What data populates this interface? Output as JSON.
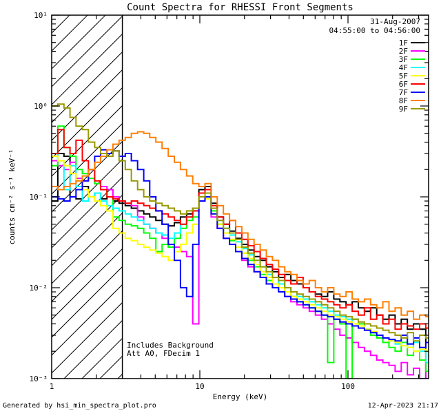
{
  "annotations": {
    "date": "31-Aug-2007",
    "time_range": "04:55:00 to 04:56:00",
    "note_line1": "Includes Background",
    "note_line2": "Att A0, FDecim 1"
  },
  "footer": {
    "left": "Generated by hsi_min_spectra_plot.pro",
    "right": "12-Apr-2023 21:17"
  },
  "chart_data": {
    "type": "line",
    "subtype": "log-log step spectra",
    "title": "Count Spectra for RHESSI Front Segments",
    "xlabel": "Energy (keV)",
    "ylabel": "counts cm⁻² s⁻¹ keV⁻¹",
    "x_scale": "log",
    "y_scale": "log",
    "xlim": [
      1,
      350
    ],
    "ylim": [
      0.001,
      10
    ],
    "x_tick_values": [
      1,
      10,
      100
    ],
    "x_tick_labels": [
      "1",
      "10",
      "100"
    ],
    "y_tick_values": [
      10,
      1,
      0.1,
      0.01,
      0.001
    ],
    "y_tick_labels": [
      "10¹",
      "10⁰",
      "10⁻¹",
      "10⁻²",
      "10⁻³"
    ],
    "grid": false,
    "legend_position": "top-right",
    "hatched_region_kev": [
      1,
      3
    ],
    "energies_kev": [
      1.0,
      1.1,
      1.21,
      1.33,
      1.46,
      1.61,
      1.77,
      1.95,
      2.14,
      2.36,
      2.59,
      2.85,
      3.14,
      3.45,
      3.8,
      4.18,
      4.59,
      5.05,
      5.56,
      6.12,
      6.73,
      7.4,
      8.14,
      8.95,
      9.85,
      10.83,
      11.92,
      13.11,
      14.42,
      15.86,
      17.45,
      19.19,
      21.11,
      23.22,
      25.54,
      28.1,
      30.91,
      34.0,
      37.4,
      41.14,
      45.25,
      49.78,
      54.76,
      60.23,
      66.25,
      72.88,
      80.17,
      88.18,
      97.0,
      106.7,
      117.4,
      129.1,
      142.0,
      156.2,
      171.8,
      189.0,
      207.9,
      228.7,
      251.6,
      276.8,
      304.4,
      334.9
    ],
    "series": [
      {
        "name": "1F",
        "color": "#000000",
        "values": [
          0.09,
          0.3,
          0.28,
          0.1,
          0.095,
          0.13,
          0.1,
          0.11,
          0.095,
          0.1,
          0.09,
          0.085,
          0.08,
          0.075,
          0.07,
          0.065,
          0.06,
          0.055,
          0.05,
          0.048,
          0.052,
          0.06,
          0.065,
          0.075,
          0.12,
          0.13,
          0.085,
          0.06,
          0.05,
          0.042,
          0.035,
          0.03,
          0.026,
          0.022,
          0.02,
          0.017,
          0.015,
          0.013,
          0.014,
          0.012,
          0.011,
          0.01,
          0.009,
          0.0085,
          0.008,
          0.009,
          0.0075,
          0.007,
          0.0065,
          0.007,
          0.006,
          0.0055,
          0.006,
          0.005,
          0.0045,
          0.005,
          0.004,
          0.0045,
          0.0035,
          0.004,
          0.0035,
          0.001
        ]
      },
      {
        "name": "2F",
        "color": "#FF00FF",
        "values": [
          0.25,
          0.22,
          0.2,
          0.24,
          0.16,
          0.15,
          0.16,
          0.14,
          0.13,
          0.12,
          0.1,
          0.09,
          0.085,
          0.08,
          0.06,
          0.05,
          0.045,
          0.04,
          0.035,
          0.03,
          0.028,
          0.025,
          0.022,
          0.004,
          0.09,
          0.1,
          0.06,
          0.045,
          0.035,
          0.03,
          0.025,
          0.02,
          0.017,
          0.015,
          0.013,
          0.011,
          0.01,
          0.009,
          0.008,
          0.007,
          0.0065,
          0.006,
          0.0055,
          0.005,
          0.0045,
          0.004,
          0.0035,
          0.003,
          0.0028,
          0.0025,
          0.0022,
          0.002,
          0.0018,
          0.0016,
          0.0015,
          0.0014,
          0.0012,
          0.0015,
          0.0011,
          0.0013,
          0.001,
          0.0012
        ]
      },
      {
        "name": "3F",
        "color": "#00FF00",
        "values": [
          0.22,
          0.6,
          0.35,
          0.28,
          0.2,
          0.18,
          0.16,
          0.14,
          0.12,
          0.1,
          0.06,
          0.055,
          0.05,
          0.048,
          0.045,
          0.04,
          0.035,
          0.025,
          0.03,
          0.028,
          0.035,
          0.045,
          0.055,
          0.06,
          0.09,
          0.1,
          0.07,
          0.05,
          0.04,
          0.033,
          0.028,
          0.024,
          0.02,
          0.017,
          0.014,
          0.012,
          0.01,
          0.012,
          0.009,
          0.008,
          0.007,
          0.0065,
          0.006,
          0.0055,
          0.005,
          0.0015,
          0.0045,
          0.004,
          0.001,
          0.0045,
          0.004,
          0.0035,
          0.003,
          0.0028,
          0.0025,
          0.0022,
          0.002,
          0.0025,
          0.0018,
          0.002,
          0.0016,
          0.0012
        ]
      },
      {
        "name": "4F",
        "color": "#00FFFF",
        "values": [
          0.3,
          0.25,
          0.12,
          0.22,
          0.13,
          0.09,
          0.1,
          0.11,
          0.09,
          0.08,
          0.075,
          0.07,
          0.065,
          0.06,
          0.055,
          0.05,
          0.045,
          0.04,
          0.038,
          0.035,
          0.04,
          0.05,
          0.06,
          0.07,
          0.1,
          0.11,
          0.075,
          0.055,
          0.045,
          0.038,
          0.032,
          0.027,
          0.023,
          0.02,
          0.017,
          0.014,
          0.013,
          0.011,
          0.01,
          0.009,
          0.008,
          0.0075,
          0.007,
          0.0065,
          0.006,
          0.0055,
          0.005,
          0.0048,
          0.0045,
          0.004,
          0.0038,
          0.0035,
          0.0032,
          0.003,
          0.0028,
          0.0026,
          0.0024,
          0.0028,
          0.0022,
          0.0025,
          0.002,
          0.0015
        ]
      },
      {
        "name": "5F",
        "color": "#FFFF00",
        "values": [
          0.28,
          0.25,
          0.22,
          0.18,
          0.15,
          0.12,
          0.1,
          0.09,
          0.08,
          0.07,
          0.045,
          0.04,
          0.035,
          0.033,
          0.03,
          0.028,
          0.026,
          0.024,
          0.022,
          0.02,
          0.025,
          0.03,
          0.04,
          0.05,
          0.09,
          0.095,
          0.065,
          0.05,
          0.04,
          0.034,
          0.028,
          0.024,
          0.021,
          0.018,
          0.015,
          0.013,
          0.011,
          0.01,
          0.009,
          0.008,
          0.0075,
          0.007,
          0.0065,
          0.006,
          0.0055,
          0.005,
          0.0048,
          0.0045,
          0.0042,
          0.004,
          0.0038,
          0.0035,
          0.0033,
          0.003,
          0.0028,
          0.0026,
          0.0025,
          0.0023,
          0.0022,
          0.002,
          0.0021,
          0.002
        ]
      },
      {
        "name": "6F",
        "color": "#FF0000",
        "values": [
          0.3,
          0.55,
          0.35,
          0.3,
          0.42,
          0.25,
          0.2,
          0.15,
          0.12,
          0.1,
          0.095,
          0.09,
          0.085,
          0.09,
          0.085,
          0.08,
          0.075,
          0.07,
          0.065,
          0.06,
          0.055,
          0.05,
          0.06,
          0.07,
          0.11,
          0.12,
          0.08,
          0.06,
          0.05,
          0.055,
          0.04,
          0.034,
          0.029,
          0.025,
          0.021,
          0.018,
          0.016,
          0.014,
          0.012,
          0.011,
          0.013,
          0.01,
          0.009,
          0.008,
          0.0075,
          0.007,
          0.0065,
          0.006,
          0.0065,
          0.0055,
          0.005,
          0.006,
          0.0045,
          0.005,
          0.004,
          0.0045,
          0.0035,
          0.004,
          0.0038,
          0.0035,
          0.004,
          0.0036
        ]
      },
      {
        "name": "7F",
        "color": "#0000FF",
        "values": [
          0.1,
          0.095,
          0.09,
          0.1,
          0.12,
          0.15,
          0.2,
          0.28,
          0.33,
          0.3,
          0.32,
          0.28,
          0.3,
          0.25,
          0.2,
          0.15,
          0.1,
          0.07,
          0.05,
          0.03,
          0.02,
          0.01,
          0.008,
          0.03,
          0.09,
          0.1,
          0.065,
          0.045,
          0.035,
          0.03,
          0.025,
          0.021,
          0.018,
          0.015,
          0.013,
          0.011,
          0.01,
          0.009,
          0.008,
          0.0075,
          0.007,
          0.0065,
          0.006,
          0.0055,
          0.005,
          0.0048,
          0.0045,
          0.0042,
          0.004,
          0.0038,
          0.0036,
          0.0034,
          0.0032,
          0.003,
          0.0028,
          0.0027,
          0.0026,
          0.003,
          0.0024,
          0.0028,
          0.0022,
          0.0025
        ]
      },
      {
        "name": "8F",
        "color": "#FF7F00",
        "values": [
          0.13,
          0.12,
          0.13,
          0.14,
          0.15,
          0.17,
          0.2,
          0.24,
          0.28,
          0.33,
          0.38,
          0.42,
          0.45,
          0.5,
          0.52,
          0.5,
          0.45,
          0.4,
          0.34,
          0.28,
          0.24,
          0.2,
          0.17,
          0.14,
          0.13,
          0.14,
          0.1,
          0.08,
          0.065,
          0.055,
          0.047,
          0.04,
          0.034,
          0.03,
          0.026,
          0.022,
          0.02,
          0.017,
          0.015,
          0.014,
          0.012,
          0.011,
          0.012,
          0.01,
          0.009,
          0.01,
          0.0085,
          0.008,
          0.009,
          0.0075,
          0.007,
          0.0075,
          0.0065,
          0.006,
          0.007,
          0.0055,
          0.006,
          0.005,
          0.0055,
          0.0045,
          0.005,
          0.0048
        ]
      },
      {
        "name": "9F",
        "color": "#999900",
        "values": [
          1.0,
          1.05,
          0.95,
          0.75,
          0.6,
          0.55,
          0.4,
          0.35,
          0.3,
          0.28,
          0.32,
          0.25,
          0.2,
          0.15,
          0.12,
          0.1,
          0.09,
          0.085,
          0.08,
          0.075,
          0.07,
          0.065,
          0.07,
          0.075,
          0.1,
          0.11,
          0.075,
          0.055,
          0.045,
          0.04,
          0.034,
          0.028,
          0.024,
          0.02,
          0.017,
          0.015,
          0.013,
          0.012,
          0.01,
          0.009,
          0.0085,
          0.008,
          0.0075,
          0.007,
          0.0065,
          0.006,
          0.0055,
          0.005,
          0.0048,
          0.0045,
          0.0042,
          0.004,
          0.0038,
          0.0036,
          0.0034,
          0.0032,
          0.003,
          0.0028,
          0.0032,
          0.0026,
          0.003,
          0.0028
        ]
      }
    ]
  }
}
